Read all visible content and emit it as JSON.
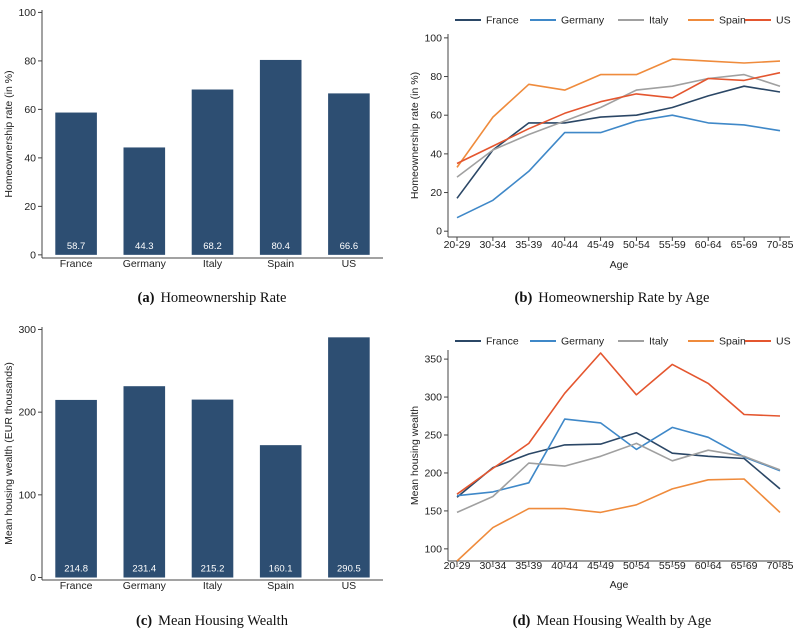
{
  "colors": {
    "bar": "#2d4e72",
    "France": "#2b4766",
    "Germany": "#3f88c8",
    "Italy": "#a0a0a0",
    "Spain": "#ef8b3c",
    "US": "#e4562f",
    "axis": "#444444",
    "tick": "#222222"
  },
  "chart_data": [
    {
      "id": "a",
      "type": "bar",
      "caption_letter": "(a)",
      "caption_text": "Homeownership Rate",
      "ylabel": "Homeownership rate (in %)",
      "xlabel": "",
      "ylim": [
        0,
        100
      ],
      "yticks": [
        "0",
        "20",
        "40",
        "60",
        "80",
        "100"
      ],
      "categories": [
        "France",
        "Germany",
        "Italy",
        "Spain",
        "US"
      ],
      "values": [
        58.7,
        44.3,
        68.2,
        80.4,
        66.6
      ],
      "value_labels": [
        "58.7",
        "44.3",
        "68.2",
        "80.4",
        "66.6"
      ]
    },
    {
      "id": "b",
      "type": "line",
      "caption_letter": "(b)",
      "caption_text": "Homeownership Rate by Age",
      "ylabel": "Homeownership rate (in %)",
      "xlabel": "Age",
      "ylim": [
        0,
        100
      ],
      "yticks": [
        "0",
        "20",
        "40",
        "60",
        "80",
        "100"
      ],
      "x": [
        "20-29",
        "30-34",
        "35-39",
        "40-44",
        "45-49",
        "50-54",
        "55-59",
        "60-64",
        "65-69",
        "70-85"
      ],
      "legend": [
        "France",
        "Germany",
        "Italy",
        "Spain",
        "US"
      ],
      "series": [
        {
          "name": "France",
          "values": [
            17,
            42,
            56,
            56,
            59,
            60,
            64,
            70,
            75,
            72
          ]
        },
        {
          "name": "Germany",
          "values": [
            7,
            16,
            31,
            51,
            51,
            57,
            60,
            56,
            55,
            52
          ]
        },
        {
          "name": "Italy",
          "values": [
            28,
            42,
            50,
            57,
            64,
            73,
            75,
            79,
            81,
            75
          ]
        },
        {
          "name": "Spain",
          "values": [
            33,
            59,
            76,
            73,
            81,
            81,
            89,
            88,
            87,
            88
          ]
        },
        {
          "name": "US",
          "values": [
            35,
            44,
            53,
            61,
            67,
            71,
            69,
            79,
            78,
            82
          ]
        }
      ]
    },
    {
      "id": "c",
      "type": "bar",
      "caption_letter": "(c)",
      "caption_text": "Mean Housing Wealth",
      "ylabel": "Mean housing wealth (EUR thousands)",
      "xlabel": "",
      "ylim": [
        0,
        300
      ],
      "yticks": [
        "0",
        "100",
        "200",
        "300"
      ],
      "categories": [
        "France",
        "Germany",
        "Italy",
        "Spain",
        "US"
      ],
      "values": [
        214.8,
        231.4,
        215.2,
        160.1,
        290.5
      ],
      "value_labels": [
        "214.8",
        "231.4",
        "215.2",
        "160.1",
        "290.5"
      ]
    },
    {
      "id": "d",
      "type": "line",
      "caption_letter": "(d)",
      "caption_text": "Mean Housing Wealth by Age",
      "ylabel": "Mean housing wealth",
      "xlabel": "Age",
      "ylim": [
        85,
        360
      ],
      "yticks": [
        "100",
        "150",
        "200",
        "250",
        "300",
        "350"
      ],
      "x": [
        "20-29",
        "30-34",
        "35-39",
        "40-44",
        "45-49",
        "50-54",
        "55-59",
        "60-64",
        "65-69",
        "70-85"
      ],
      "legend": [
        "France",
        "Germany",
        "Italy",
        "Spain",
        "US"
      ],
      "series": [
        {
          "name": "France",
          "values": [
            168,
            207,
            225,
            237,
            238,
            253,
            226,
            222,
            219,
            179
          ]
        },
        {
          "name": "Germany",
          "values": [
            170,
            175,
            187,
            271,
            266,
            231,
            260,
            247,
            221,
            203
          ]
        },
        {
          "name": "Italy",
          "values": [
            148,
            169,
            213,
            209,
            222,
            239,
            216,
            230,
            222,
            204
          ]
        },
        {
          "name": "Spain",
          "values": [
            84,
            128,
            153,
            153,
            148,
            158,
            179,
            191,
            192,
            148
          ]
        },
        {
          "name": "US",
          "values": [
            172,
            206,
            239,
            305,
            358,
            303,
            343,
            318,
            277,
            275
          ]
        }
      ]
    }
  ]
}
